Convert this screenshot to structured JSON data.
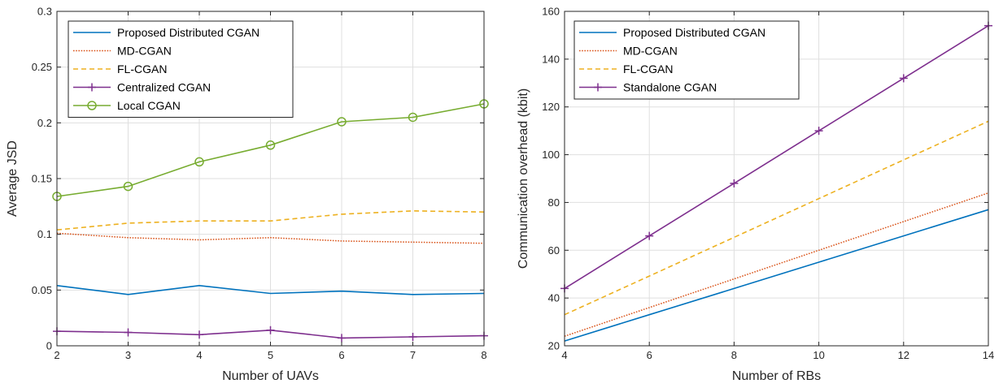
{
  "chart_data": [
    {
      "type": "line",
      "xlabel": "Number of UAVs",
      "ylabel": "Average JSD",
      "xlim": [
        2,
        8
      ],
      "ylim": [
        0,
        0.3
      ],
      "xticks": [
        2,
        3,
        4,
        5,
        6,
        7,
        8
      ],
      "xtick_labels": [
        "2",
        "3",
        "4",
        "5",
        "6",
        "7",
        "8"
      ],
      "yticks": [
        0,
        0.05,
        0.1,
        0.15,
        0.2,
        0.25,
        0.3
      ],
      "ytick_labels": [
        "0",
        "0.05",
        "0.1",
        "0.15",
        "0.2",
        "0.25",
        "0.3"
      ],
      "grid": true,
      "legend_position": "top-left",
      "x": [
        2,
        3,
        4,
        5,
        6,
        7,
        8
      ],
      "series": [
        {
          "name": "Proposed Distributed CGAN",
          "values": [
            0.054,
            0.046,
            0.054,
            0.047,
            0.049,
            0.046,
            0.047
          ],
          "color": "#0072BD",
          "style": "solid",
          "marker": "none"
        },
        {
          "name": "MD-CGAN",
          "values": [
            0.101,
            0.097,
            0.095,
            0.097,
            0.094,
            0.093,
            0.092
          ],
          "color": "#D95319",
          "style": "dotted",
          "marker": "none"
        },
        {
          "name": "FL-CGAN",
          "values": [
            0.104,
            0.11,
            0.112,
            0.112,
            0.118,
            0.121,
            0.12
          ],
          "color": "#EDB120",
          "style": "dashed",
          "marker": "none"
        },
        {
          "name": "Centralized CGAN",
          "values": [
            0.013,
            0.012,
            0.01,
            0.014,
            0.007,
            0.008,
            0.009
          ],
          "color": "#7E2F8E",
          "style": "solid",
          "marker": "plus"
        },
        {
          "name": "Local CGAN",
          "values": [
            0.134,
            0.143,
            0.165,
            0.18,
            0.201,
            0.205,
            0.217
          ],
          "color": "#77AC30",
          "style": "solid",
          "marker": "circle"
        }
      ]
    },
    {
      "type": "line",
      "xlabel": "Number of RBs",
      "ylabel": "Communication overhead (kbit)",
      "xlim": [
        4,
        14
      ],
      "ylim": [
        20,
        160
      ],
      "xticks": [
        4,
        6,
        8,
        10,
        12,
        14
      ],
      "xtick_labels": [
        "4",
        "6",
        "8",
        "10",
        "12",
        "14"
      ],
      "yticks": [
        20,
        40,
        60,
        80,
        100,
        120,
        140,
        160
      ],
      "ytick_labels": [
        "20",
        "40",
        "60",
        "80",
        "100",
        "120",
        "140",
        "160"
      ],
      "grid": true,
      "legend_position": "top-left",
      "x": [
        4,
        6,
        8,
        10,
        12,
        14
      ],
      "series": [
        {
          "name": "Proposed Distributed CGAN",
          "values": [
            22,
            33,
            44,
            55,
            66,
            77
          ],
          "color": "#0072BD",
          "style": "solid",
          "marker": "none"
        },
        {
          "name": "MD-CGAN",
          "values": [
            24,
            36,
            48,
            60,
            72,
            84
          ],
          "color": "#D95319",
          "style": "dotted",
          "marker": "none"
        },
        {
          "name": "FL-CGAN",
          "values": [
            33,
            49.2,
            65.4,
            81.6,
            97.8,
            114
          ],
          "color": "#EDB120",
          "style": "dashed",
          "marker": "none"
        },
        {
          "name": "Standalone CGAN",
          "values": [
            44,
            66,
            88,
            110,
            132,
            154
          ],
          "color": "#7E2F8E",
          "style": "solid",
          "marker": "plus"
        }
      ]
    }
  ]
}
